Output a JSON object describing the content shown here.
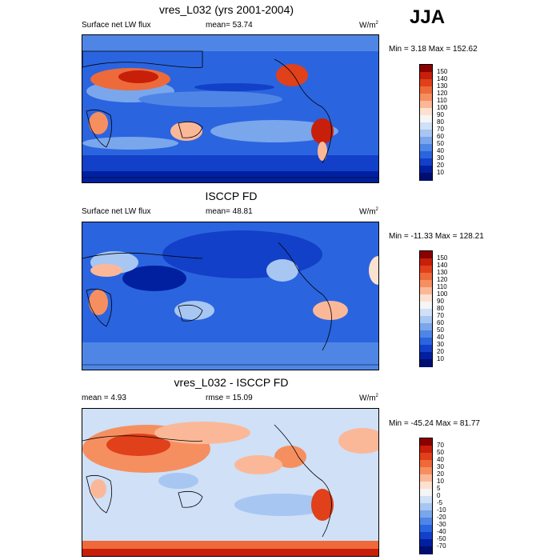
{
  "season": "JJA",
  "panels": [
    {
      "id": "model",
      "title": "vres_L032 (yrs 2001-2004)",
      "left_label": "Surface net LW flux",
      "center_label": "mean=  53.74",
      "unit": "W/m",
      "unit_sup": "2",
      "minmax": "Min =   3.18 Max = 152.62",
      "levels": [
        "150",
        "140",
        "130",
        "120",
        "110",
        "100",
        "90",
        "80",
        "70",
        "60",
        "50",
        "40",
        "30",
        "20",
        "10"
      ],
      "colors": [
        "#8b0000",
        "#c71f0a",
        "#e0401a",
        "#ee6a3a",
        "#f68f60",
        "#fbb898",
        "#fde1d0",
        "#f5f5f5",
        "#cfe0f7",
        "#a7c6f2",
        "#7aa6ec",
        "#4f86e6",
        "#2b64df",
        "#1240c8",
        "#0020a0",
        "#000e70"
      ]
    },
    {
      "id": "obs",
      "title": "ISCCP FD",
      "left_label": "Surface net LW flux",
      "center_label": "mean=  48.81",
      "unit": "W/m",
      "unit_sup": "2",
      "minmax": "Min = -11.33 Max = 128.21",
      "levels": [
        "150",
        "140",
        "130",
        "120",
        "110",
        "100",
        "90",
        "80",
        "70",
        "60",
        "50",
        "40",
        "30",
        "20",
        "10"
      ],
      "colors": [
        "#8b0000",
        "#c71f0a",
        "#e0401a",
        "#ee6a3a",
        "#f68f60",
        "#fbb898",
        "#fde1d0",
        "#f5f5f5",
        "#cfe0f7",
        "#a7c6f2",
        "#7aa6ec",
        "#4f86e6",
        "#2b64df",
        "#1240c8",
        "#0020a0",
        "#000e70"
      ]
    },
    {
      "id": "diff",
      "title": "vres_L032 - ISCCP FD",
      "left_label": "mean =   4.93",
      "center_label": "rmse =  15.09",
      "unit": "W/m",
      "unit_sup": "2",
      "minmax": "Min = -45.24 Max =  81.77",
      "levels": [
        "70",
        "50",
        "40",
        "30",
        "20",
        "10",
        "5",
        "0",
        "-5",
        "-10",
        "-20",
        "-30",
        "-40",
        "-50",
        "-70"
      ],
      "colors": [
        "#8b0000",
        "#c71f0a",
        "#e0401a",
        "#ee6a3a",
        "#f68f60",
        "#fbb898",
        "#fde1d0",
        "#f5f5f5",
        "#cfe0f7",
        "#a7c6f2",
        "#7aa6ec",
        "#4f86e6",
        "#2b64df",
        "#1240c8",
        "#0020a0",
        "#000e70"
      ]
    }
  ]
}
